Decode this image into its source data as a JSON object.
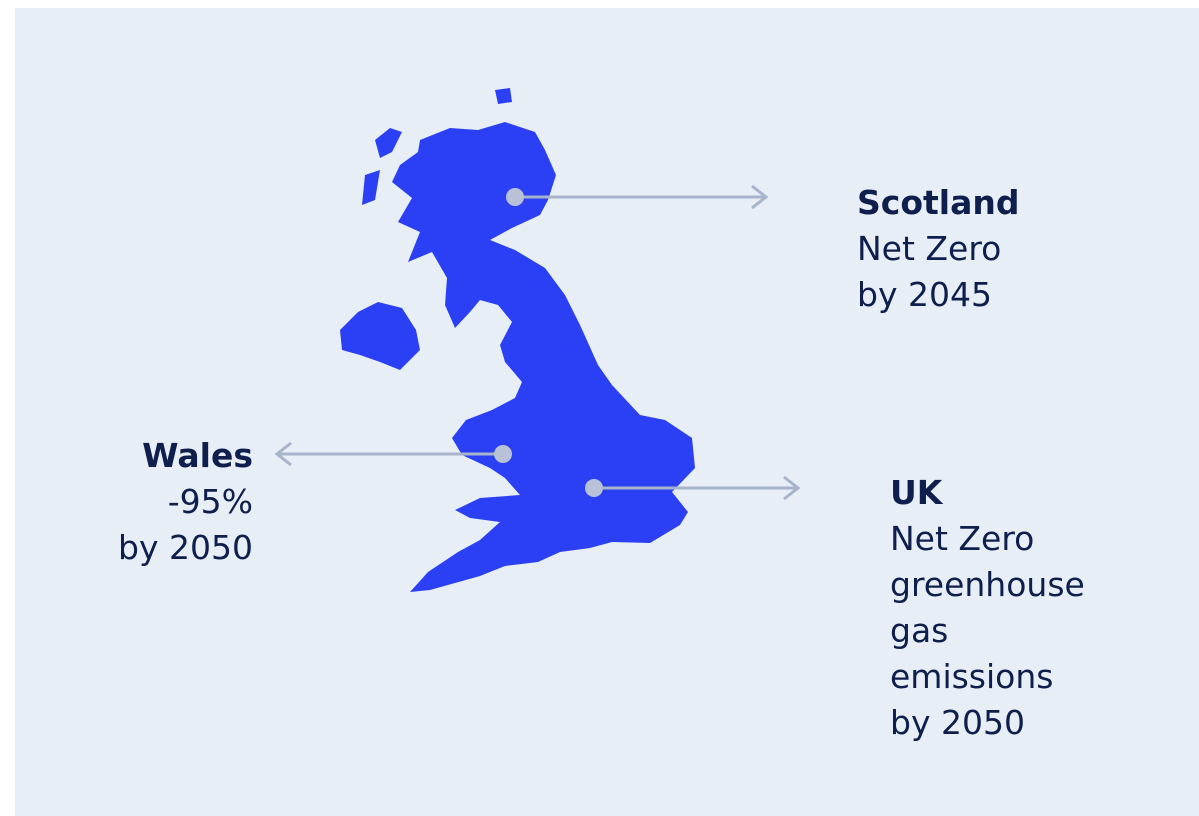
{
  "regions": [
    {
      "name": "Scotland",
      "lines": [
        "Net Zero",
        "by 2045"
      ]
    },
    {
      "name": "Wales",
      "lines": [
        "-95%",
        "by 2050"
      ]
    },
    {
      "name": "UK",
      "lines": [
        "Net Zero",
        "greenhouse",
        "gas",
        "emissions",
        "by 2050"
      ]
    }
  ]
}
